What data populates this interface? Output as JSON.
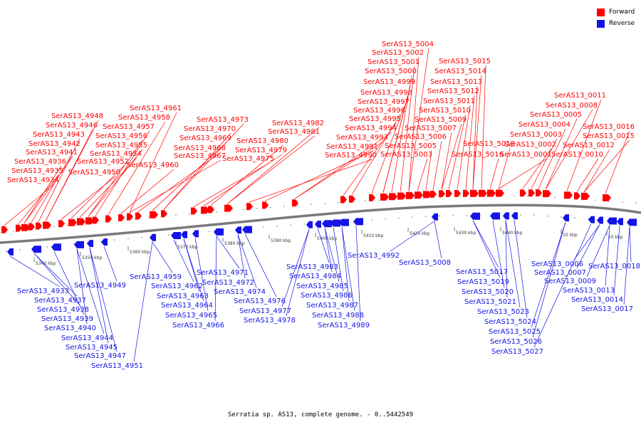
{
  "legend": {
    "forward_label": "Forward",
    "reverse_label": "Reverse",
    "forward_color": "#ff0000",
    "reverse_color": "#1414e6"
  },
  "caption": "Serratia sp. AS13, complete genome. - 0..5442549",
  "scale_ticks": [
    "5340 kbp",
    "5350 kbp",
    "5360 kbp",
    "5370 kbp",
    "5380 kbp",
    "5390 kbp",
    "5400 kbp",
    "5410 kbp",
    "5420 kbp",
    "5430 kbp",
    "5440 kbp",
    "10 kbp",
    "20 kbp"
  ],
  "forward_genes": [
    "SerAS13_4934",
    "SerAS13_4935",
    "SerAS13_4936",
    "SerAS13_4941",
    "SerAS13_4942",
    "SerAS13_4943",
    "SerAS13_4946",
    "SerAS13_4948",
    "SerAS13_4950",
    "SerAS13_4952",
    "SerAS13_4954",
    "SerAS13_4955",
    "SerAS13_4956",
    "SerAS13_4957",
    "SerAS13_4958",
    "SerAS13_4960",
    "SerAS13_4961",
    "SerAS13_4967",
    "SerAS13_4968",
    "SerAS13_4969",
    "SerAS13_4970",
    "SerAS13_4973",
    "SerAS13_4975",
    "SerAS13_4979",
    "SerAS13_4980",
    "SerAS13_4981",
    "SerAS13_4982",
    "SerAS13_4990",
    "SerAS13_4991",
    "SerAS13_4993",
    "SerAS13_4994",
    "SerAS13_4995",
    "SerAS13_4996",
    "SerAS13_4997",
    "SerAS13_4998",
    "SerAS13_4999",
    "SerAS13_5000",
    "SerAS13_5001",
    "SerAS13_5002",
    "SerAS13_5004",
    "SerAS13_5003",
    "SerAS13_5005",
    "SerAS13_5006",
    "SerAS13_5007",
    "SerAS13_5009",
    "SerAS13_5010",
    "SerAS13_5011",
    "SerAS13_5012",
    "SerAS13_5013",
    "SerAS13_5014",
    "SerAS13_5015",
    "SerAS13_5016",
    "SerAS13_5018",
    "SerAS13_0001",
    "SerAS13_0002",
    "SerAS13_0003",
    "SerAS13_0004",
    "SerAS13_0005",
    "SerAS13_0008",
    "SerAS13_0011",
    "SerAS13_0010",
    "SerAS13_0012",
    "SerAS13_0015",
    "SerAS13_0016"
  ],
  "reverse_genes": [
    "SerAS13_4933",
    "SerAS13_4937",
    "SerAS13_4938",
    "SerAS13_4939",
    "SerAS13_4940",
    "SerAS13_4944",
    "SerAS13_4945",
    "SerAS13_4947",
    "SerAS13_4949",
    "SerAS13_4951",
    "SerAS13_4959",
    "SerAS13_4962",
    "SerAS13_4963",
    "SerAS13_4964",
    "SerAS13_4965",
    "SerAS13_4966",
    "SerAS13_4971",
    "SerAS13_4972",
    "SerAS13_4974",
    "SerAS13_4976",
    "SerAS13_4977",
    "SerAS13_4978",
    "SerAS13_4983",
    "SerAS13_4984",
    "SerAS13_4985",
    "SerAS13_4986",
    "SerAS13_4987",
    "SerAS13_4988",
    "SerAS13_4989",
    "SerAS13_4992",
    "SerAS13_5008",
    "SerAS13_5017",
    "SerAS13_5019",
    "SerAS13_5020",
    "SerAS13_5021",
    "SerAS13_5023",
    "SerAS13_5024",
    "SerAS13_5025",
    "SerAS13_5026",
    "SerAS13_5027",
    "SerAS13_0006",
    "SerAS13_0007",
    "SerAS13_0009",
    "SerAS13_0013",
    "SerAS13_0014",
    "SerAS13_0017",
    "SerAS13_0018"
  ]
}
